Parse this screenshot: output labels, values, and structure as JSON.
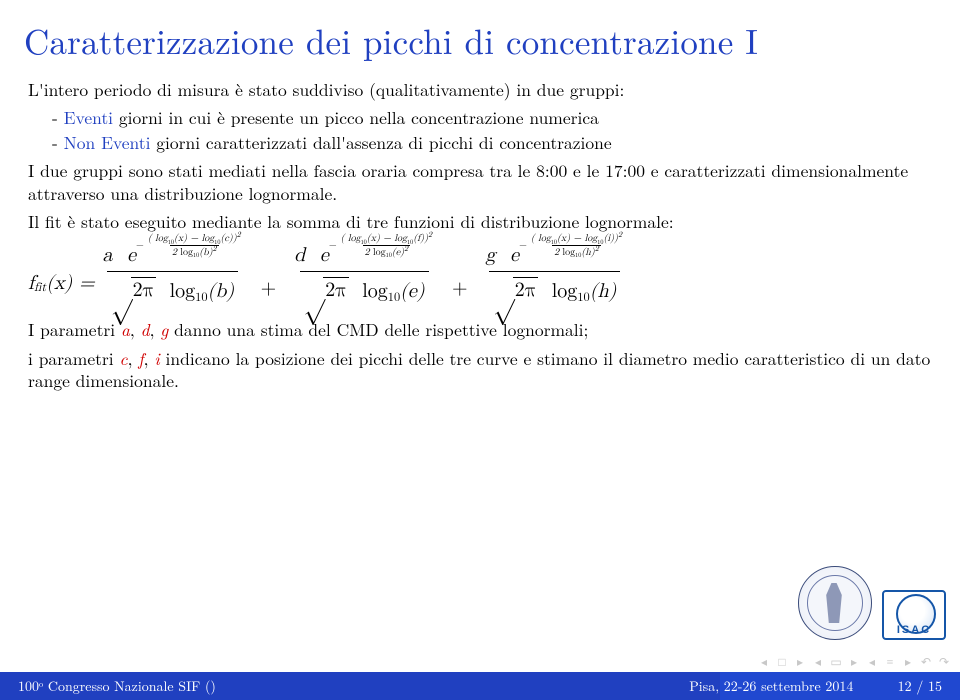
{
  "title": "Caratterizzazione dei picchi di concentrazione I",
  "intro": "L'intero periodo di misura è stato suddiviso (qualitativamente) in due gruppi:",
  "bullets": {
    "b1_label": "Eventi",
    "b1_rest": " giorni in cui è presente un picco nella concentrazione numerica",
    "b2_label": "Non Eventi",
    "b2_rest": " giorni caratterizzati dall'assenza di picchi di concentrazione"
  },
  "para1": "I due gruppi sono stati mediati nella fascia oraria compresa tra le 8:00 e le 17:00 e caratterizzati dimensionalmente attraverso una distribuzione lognormale.",
  "para2": "Il fit è stato eseguito mediante la somma di tre funzioni di distribuzione lognormale:",
  "formula": {
    "lhs_f": "f",
    "lhs_sub": "fit",
    "lhs_arg": "(x) = ",
    "coef1": "a",
    "coef2": "d",
    "coef3": "g",
    "e": "e",
    "twopi": "2π",
    "log": "log",
    "ten": "10",
    "xminuslog1": "(x) − log",
    "Cc": "(c)",
    "Cf": "(f)",
    "Ci": "(i)",
    "sq": "2",
    "two": "2",
    "Bb": "(b)",
    "Be": "(e)",
    "Bh": "(h)",
    "xarg": "( log",
    "closep2": ")"
  },
  "para3_a": "I parametri ",
  "p_a": "a",
  "p_d": "d",
  "p_g": "g",
  "para3_b": " danno una stima del CMD delle rispettive lognormali;",
  "para4_a": "i parametri ",
  "p_c": "c",
  "p_f": "f",
  "p_i": "i",
  "para4_b": " indicano la posizione dei picchi delle tre curve e stimano il diametro medio caratteristico di un dato range dimensionale.",
  "footer": {
    "left_a": "100",
    "left_o": "o",
    "left_b": " Congresso Nazionale SIF ()",
    "right_a": "Pisa, 22-26 settembre 2014",
    "right_b": "12 / 15"
  },
  "logo": {
    "isac": "ISAC"
  },
  "colors": {
    "title": "#2040c0",
    "red": "#d00000",
    "footer_bg": "#2040c0",
    "text": "#000000"
  }
}
